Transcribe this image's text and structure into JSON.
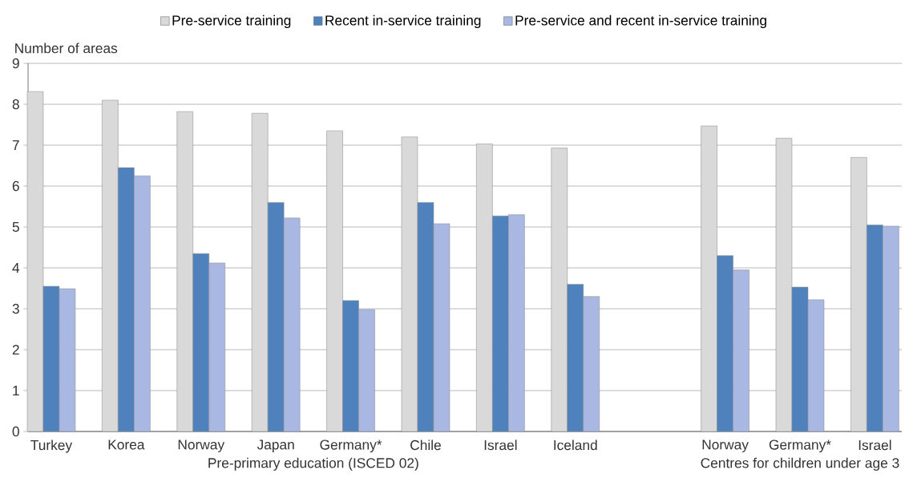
{
  "chart_data": {
    "type": "bar",
    "ylabel": "Number of  areas",
    "categories": [
      "Turkey",
      "Korea",
      "Norway",
      "Japan",
      "Germany*",
      "Chile",
      "Israel",
      "Iceland",
      null,
      "Norway",
      "Germany*",
      "Israel"
    ],
    "series": [
      {
        "name": "Pre-service training",
        "color": "#d9d9d9",
        "values": [
          8.31,
          8.1,
          7.82,
          7.78,
          7.35,
          7.2,
          7.03,
          6.93,
          null,
          7.47,
          7.17,
          6.7
        ]
      },
      {
        "name": "Recent in-service training",
        "color": "#4f81bd",
        "values": [
          3.55,
          6.45,
          4.35,
          5.6,
          3.2,
          5.6,
          5.27,
          3.6,
          null,
          4.3,
          3.53,
          5.05
        ]
      },
      {
        "name": "Pre-service and recent in-service training",
        "color": "#a9b8e2",
        "values": [
          3.49,
          6.25,
          4.12,
          5.22,
          2.98,
          5.08,
          5.3,
          3.3,
          null,
          3.95,
          3.22,
          5.02
        ]
      }
    ],
    "annotations": [
      "Pre-primary education (ISCED 02)",
      "Centres for children under age 3"
    ],
    "ylim": [
      0,
      9
    ],
    "yticks": [
      0,
      1,
      2,
      3,
      4,
      5,
      6,
      7,
      8,
      9
    ],
    "grid": "y",
    "legend": "top"
  }
}
